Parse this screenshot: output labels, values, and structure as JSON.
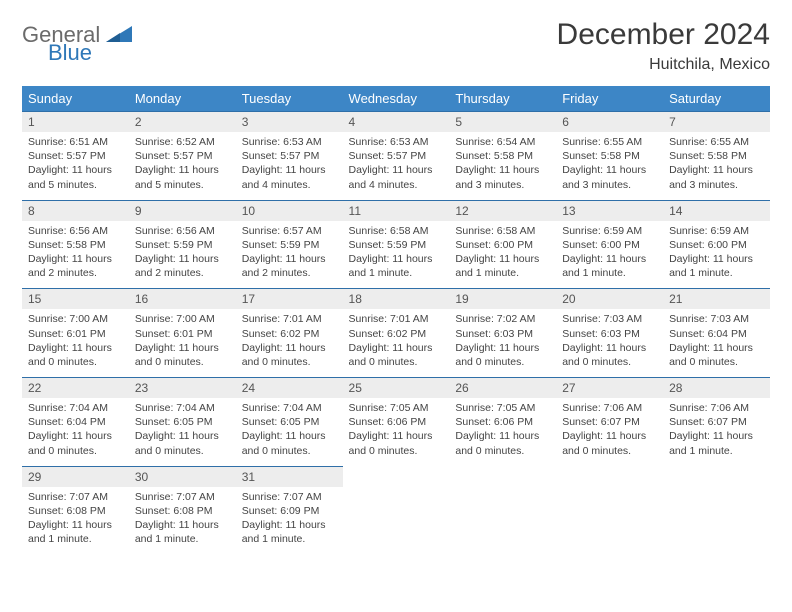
{
  "brand": {
    "word1": "General",
    "word2": "Blue",
    "color_blue": "#2f78b8",
    "color_gray": "#6b6b6b"
  },
  "title": "December 2024",
  "location": "Huitchila, Mexico",
  "header_bg": "#3d86c6",
  "header_fg": "#ffffff",
  "daynum_bg": "#ededed",
  "rule_color": "#2f6fa8",
  "weekdays": [
    "Sunday",
    "Monday",
    "Tuesday",
    "Wednesday",
    "Thursday",
    "Friday",
    "Saturday"
  ],
  "days": [
    {
      "n": 1,
      "sunrise": "6:51 AM",
      "sunset": "5:57 PM",
      "daylight": "11 hours and 5 minutes."
    },
    {
      "n": 2,
      "sunrise": "6:52 AM",
      "sunset": "5:57 PM",
      "daylight": "11 hours and 5 minutes."
    },
    {
      "n": 3,
      "sunrise": "6:53 AM",
      "sunset": "5:57 PM",
      "daylight": "11 hours and 4 minutes."
    },
    {
      "n": 4,
      "sunrise": "6:53 AM",
      "sunset": "5:57 PM",
      "daylight": "11 hours and 4 minutes."
    },
    {
      "n": 5,
      "sunrise": "6:54 AM",
      "sunset": "5:58 PM",
      "daylight": "11 hours and 3 minutes."
    },
    {
      "n": 6,
      "sunrise": "6:55 AM",
      "sunset": "5:58 PM",
      "daylight": "11 hours and 3 minutes."
    },
    {
      "n": 7,
      "sunrise": "6:55 AM",
      "sunset": "5:58 PM",
      "daylight": "11 hours and 3 minutes."
    },
    {
      "n": 8,
      "sunrise": "6:56 AM",
      "sunset": "5:58 PM",
      "daylight": "11 hours and 2 minutes."
    },
    {
      "n": 9,
      "sunrise": "6:56 AM",
      "sunset": "5:59 PM",
      "daylight": "11 hours and 2 minutes."
    },
    {
      "n": 10,
      "sunrise": "6:57 AM",
      "sunset": "5:59 PM",
      "daylight": "11 hours and 2 minutes."
    },
    {
      "n": 11,
      "sunrise": "6:58 AM",
      "sunset": "5:59 PM",
      "daylight": "11 hours and 1 minute."
    },
    {
      "n": 12,
      "sunrise": "6:58 AM",
      "sunset": "6:00 PM",
      "daylight": "11 hours and 1 minute."
    },
    {
      "n": 13,
      "sunrise": "6:59 AM",
      "sunset": "6:00 PM",
      "daylight": "11 hours and 1 minute."
    },
    {
      "n": 14,
      "sunrise": "6:59 AM",
      "sunset": "6:00 PM",
      "daylight": "11 hours and 1 minute."
    },
    {
      "n": 15,
      "sunrise": "7:00 AM",
      "sunset": "6:01 PM",
      "daylight": "11 hours and 0 minutes."
    },
    {
      "n": 16,
      "sunrise": "7:00 AM",
      "sunset": "6:01 PM",
      "daylight": "11 hours and 0 minutes."
    },
    {
      "n": 17,
      "sunrise": "7:01 AM",
      "sunset": "6:02 PM",
      "daylight": "11 hours and 0 minutes."
    },
    {
      "n": 18,
      "sunrise": "7:01 AM",
      "sunset": "6:02 PM",
      "daylight": "11 hours and 0 minutes."
    },
    {
      "n": 19,
      "sunrise": "7:02 AM",
      "sunset": "6:03 PM",
      "daylight": "11 hours and 0 minutes."
    },
    {
      "n": 20,
      "sunrise": "7:03 AM",
      "sunset": "6:03 PM",
      "daylight": "11 hours and 0 minutes."
    },
    {
      "n": 21,
      "sunrise": "7:03 AM",
      "sunset": "6:04 PM",
      "daylight": "11 hours and 0 minutes."
    },
    {
      "n": 22,
      "sunrise": "7:04 AM",
      "sunset": "6:04 PM",
      "daylight": "11 hours and 0 minutes."
    },
    {
      "n": 23,
      "sunrise": "7:04 AM",
      "sunset": "6:05 PM",
      "daylight": "11 hours and 0 minutes."
    },
    {
      "n": 24,
      "sunrise": "7:04 AM",
      "sunset": "6:05 PM",
      "daylight": "11 hours and 0 minutes."
    },
    {
      "n": 25,
      "sunrise": "7:05 AM",
      "sunset": "6:06 PM",
      "daylight": "11 hours and 0 minutes."
    },
    {
      "n": 26,
      "sunrise": "7:05 AM",
      "sunset": "6:06 PM",
      "daylight": "11 hours and 0 minutes."
    },
    {
      "n": 27,
      "sunrise": "7:06 AM",
      "sunset": "6:07 PM",
      "daylight": "11 hours and 0 minutes."
    },
    {
      "n": 28,
      "sunrise": "7:06 AM",
      "sunset": "6:07 PM",
      "daylight": "11 hours and 1 minute."
    },
    {
      "n": 29,
      "sunrise": "7:07 AM",
      "sunset": "6:08 PM",
      "daylight": "11 hours and 1 minute."
    },
    {
      "n": 30,
      "sunrise": "7:07 AM",
      "sunset": "6:08 PM",
      "daylight": "11 hours and 1 minute."
    },
    {
      "n": 31,
      "sunrise": "7:07 AM",
      "sunset": "6:09 PM",
      "daylight": "11 hours and 1 minute."
    }
  ],
  "labels": {
    "sunrise": "Sunrise:",
    "sunset": "Sunset:",
    "daylight": "Daylight:"
  }
}
